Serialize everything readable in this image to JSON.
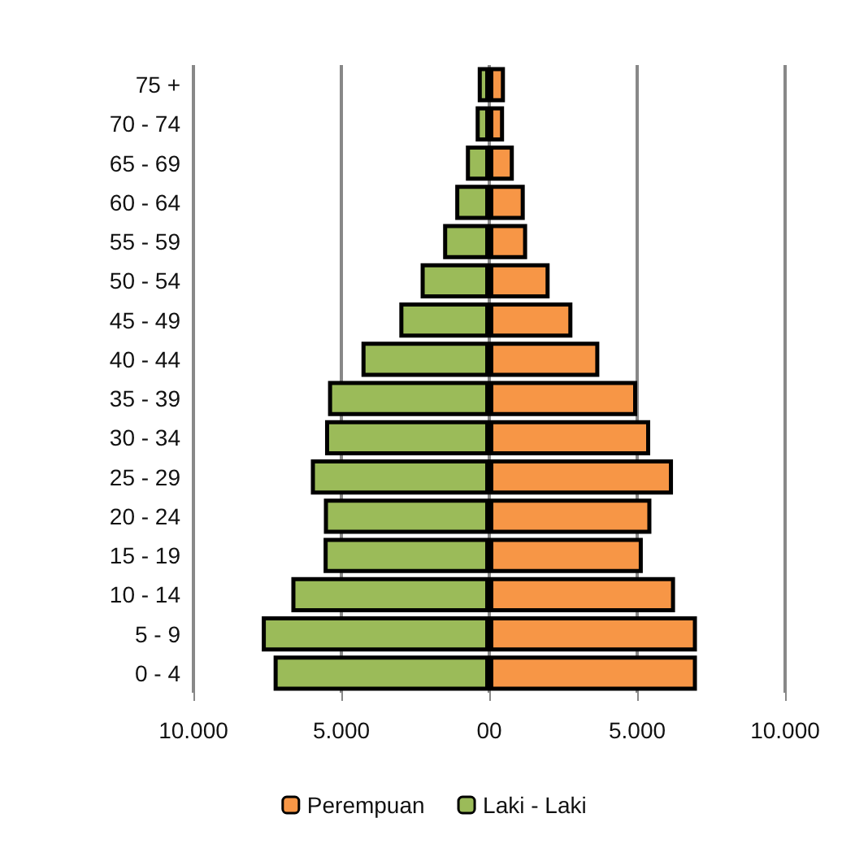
{
  "chart_data": {
    "type": "bar",
    "orientation": "horizontal",
    "stacked": true,
    "categories": [
      "75 +",
      "70 - 74",
      "65 - 69",
      "60 - 64",
      "55 - 59",
      "50 - 54",
      "45 - 49",
      "40 - 44",
      "35 - 39",
      "30 - 34",
      "25 - 29",
      "20 - 24",
      "15 - 19",
      "10 - 14",
      "5 - 9",
      "0 - 4"
    ],
    "series": [
      {
        "name": "Perempuan",
        "color": "#f79646",
        "values": [
          530,
          500,
          830,
          1200,
          1280,
          2040,
          2810,
          3720,
          5000,
          5440,
          6210,
          5480,
          5190,
          6280,
          7020,
          7020
        ]
      },
      {
        "name": "Laki - Laki",
        "color": "#9bbb59",
        "values": [
          -390,
          -460,
          -790,
          -1150,
          -1560,
          -2320,
          -3040,
          -4320,
          -5450,
          -5550,
          -6030,
          -5590,
          -5600,
          -6690,
          -7690,
          -7290
        ]
      }
    ],
    "xlim": [
      -10000,
      10000
    ],
    "xticks": [
      {
        "value": -10000,
        "label": "10.000"
      },
      {
        "value": -5000,
        "label": "5.000"
      },
      {
        "value": 0,
        "label": "00"
      },
      {
        "value": 5000,
        "label": "5.000"
      },
      {
        "value": 10000,
        "label": "10.000"
      }
    ],
    "grid": "x",
    "legend": "bottom"
  }
}
